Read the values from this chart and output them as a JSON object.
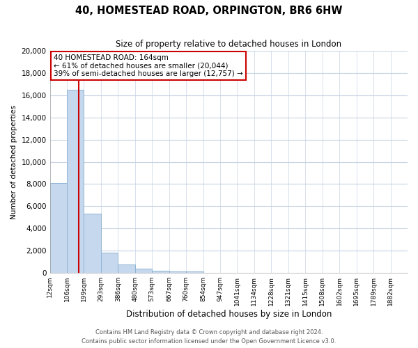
{
  "title": "40, HOMESTEAD ROAD, ORPINGTON, BR6 6HW",
  "subtitle": "Size of property relative to detached houses in London",
  "xlabel": "Distribution of detached houses by size in London",
  "ylabel": "Number of detached properties",
  "bar_labels": [
    "12sqm",
    "106sqm",
    "199sqm",
    "293sqm",
    "386sqm",
    "480sqm",
    "573sqm",
    "667sqm",
    "760sqm",
    "854sqm",
    "947sqm",
    "1041sqm",
    "1134sqm",
    "1228sqm",
    "1321sqm",
    "1415sqm",
    "1508sqm",
    "1602sqm",
    "1695sqm",
    "1789sqm",
    "1882sqm"
  ],
  "bar_values": [
    8100,
    16500,
    5300,
    1800,
    750,
    350,
    200,
    150,
    130,
    0,
    0,
    0,
    0,
    0,
    0,
    0,
    0,
    0,
    0,
    0,
    0
  ],
  "bar_color": "#c5d8ed",
  "bar_edge_color": "#8fb4d4",
  "vline_color": "#cc0000",
  "annotation_text": "40 HOMESTEAD ROAD: 164sqm\n← 61% of detached houses are smaller (20,044)\n39% of semi-detached houses are larger (12,757) →",
  "annotation_box_color": "#ffffff",
  "annotation_box_edge": "#cc0000",
  "ylim": [
    0,
    20000
  ],
  "yticks": [
    0,
    2000,
    4000,
    6000,
    8000,
    10000,
    12000,
    14000,
    16000,
    18000,
    20000
  ],
  "footer_line1": "Contains HM Land Registry data © Crown copyright and database right 2024.",
  "footer_line2": "Contains public sector information licensed under the Open Government Licence v3.0.",
  "background_color": "#ffffff",
  "grid_color": "#c8d4e4"
}
